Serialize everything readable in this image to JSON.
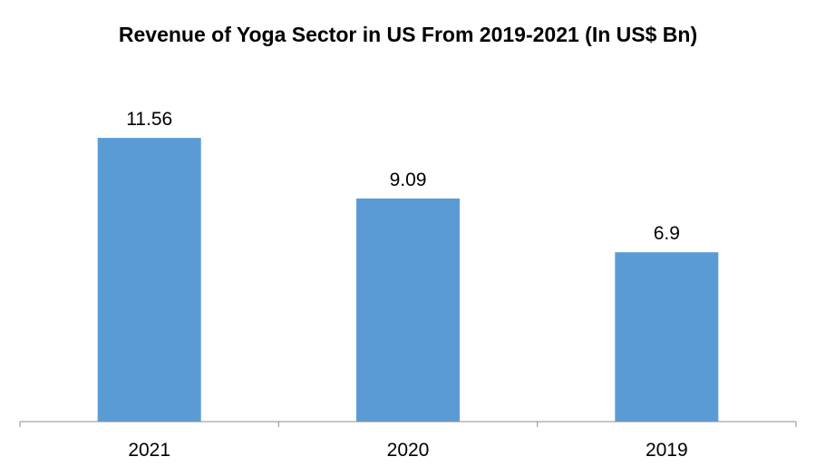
{
  "chart_data": {
    "type": "bar",
    "title": "Revenue of Yoga Sector in US From 2019-2021 (In US$ Bn)",
    "categories": [
      "2021",
      "2020",
      "2019"
    ],
    "values": [
      11.56,
      9.09,
      6.9
    ],
    "value_labels": [
      "11.56",
      "9.09",
      "6.9"
    ],
    "ylim": [
      0,
      14
    ],
    "grid": false,
    "legend": "none",
    "bar_color": "#5b9bd5"
  }
}
